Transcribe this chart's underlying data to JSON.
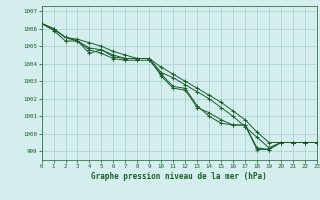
{
  "xlabel": "Graphe pression niveau de la mer (hPa)",
  "bg_color": "#d4eeee",
  "grid_color": "#aed4d4",
  "line_color": "#1a5c2a",
  "xlim": [
    0,
    23
  ],
  "ylim": [
    998.5,
    1007.3
  ],
  "yticks": [
    999,
    1000,
    1001,
    1002,
    1003,
    1004,
    1005,
    1006,
    1007
  ],
  "xticks": [
    0,
    1,
    2,
    3,
    4,
    5,
    6,
    7,
    8,
    9,
    10,
    11,
    12,
    13,
    14,
    15,
    16,
    17,
    18,
    19,
    20,
    21,
    22,
    23
  ],
  "series": [
    [
      1006.3,
      1005.9,
      1005.3,
      1005.3,
      1004.6,
      1004.8,
      1004.4,
      1004.3,
      1004.3,
      1004.3,
      1003.3,
      1002.6,
      1002.5,
      1001.5,
      1001.2,
      1000.8,
      1000.5,
      1000.5,
      999.2,
      999.1,
      999.5,
      999.5,
      999.5,
      999.5
    ],
    [
      1006.3,
      1006.0,
      1005.5,
      1005.3,
      1004.9,
      1004.8,
      1004.5,
      1004.3,
      1004.3,
      1004.3,
      1003.5,
      1003.2,
      1002.8,
      1002.4,
      1002.0,
      1001.5,
      1001.0,
      1000.4,
      999.8,
      999.2,
      999.5,
      999.5,
      999.5,
      999.5
    ],
    [
      1006.3,
      1006.0,
      1005.5,
      1005.4,
      1005.2,
      1005.0,
      1004.7,
      1004.5,
      1004.3,
      1004.3,
      1003.8,
      1003.4,
      1003.0,
      1002.6,
      1002.2,
      1001.8,
      1001.3,
      1000.8,
      1000.1,
      999.5,
      999.5,
      999.5,
      999.5,
      999.5
    ],
    [
      1006.3,
      1006.0,
      1005.5,
      1005.3,
      1004.8,
      1004.6,
      1004.3,
      1004.2,
      1004.2,
      1004.2,
      1003.4,
      1002.7,
      1002.6,
      1001.6,
      1001.0,
      1000.6,
      1000.5,
      1000.5,
      999.1,
      999.1,
      999.5,
      999.5,
      999.5,
      999.5
    ]
  ]
}
